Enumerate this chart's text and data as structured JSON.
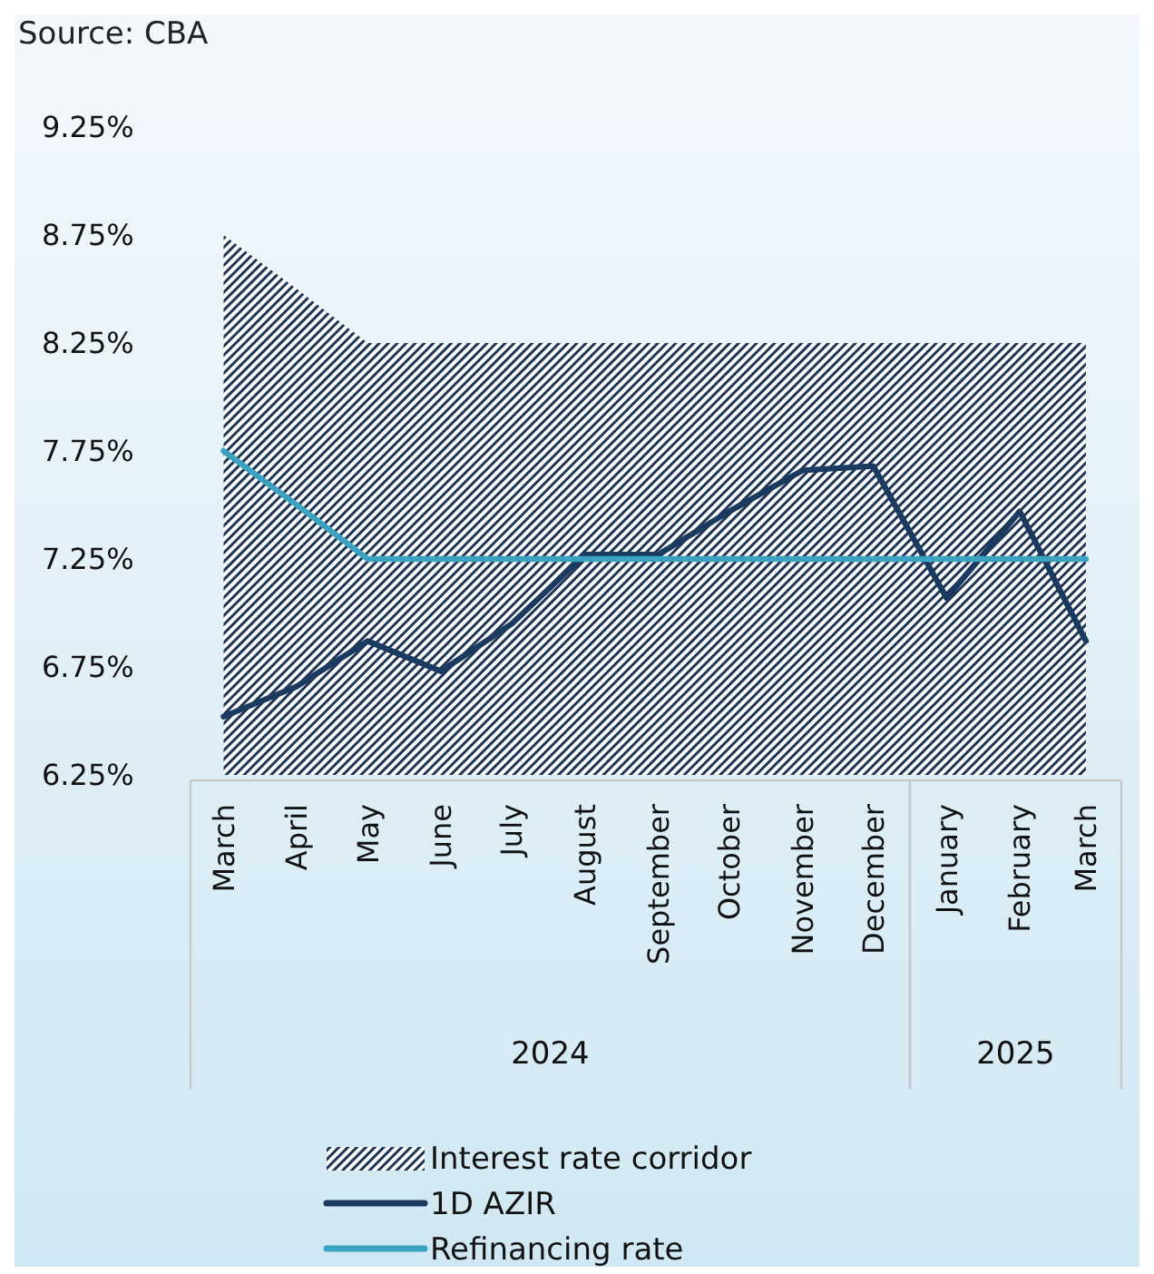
{
  "chart_data": {
    "type": "line",
    "annotations": [
      "Source: CBA",
      "2024",
      "2025"
    ],
    "x": [
      "2024-03",
      "2024-04",
      "2024-05",
      "2024-06",
      "2024-07",
      "2024-08",
      "2024-09",
      "2024-10",
      "2024-11",
      "2024-12",
      "2025-01",
      "2025-02",
      "2025-03"
    ],
    "xlim": [
      "2024-02-16",
      "2025-03-16"
    ],
    "xticks": [
      {
        "value": "2024-03",
        "label": "March"
      },
      {
        "value": "2024-04",
        "label": "April"
      },
      {
        "value": "2024-05",
        "label": "May"
      },
      {
        "value": "2024-06",
        "label": "June"
      },
      {
        "value": "2024-07",
        "label": "July"
      },
      {
        "value": "2024-08",
        "label": "August"
      },
      {
        "value": "2024-09",
        "label": "September"
      },
      {
        "value": "2024-10",
        "label": "October"
      },
      {
        "value": "2024-11",
        "label": "November"
      },
      {
        "value": "2024-12",
        "label": "December"
      },
      {
        "value": "2025-01",
        "label": "January"
      },
      {
        "value": "2025-02",
        "label": "February"
      },
      {
        "value": "2025-03",
        "label": "March"
      }
    ],
    "ylim": [
      6.25,
      9.25
    ],
    "yticks": [
      {
        "value": 6.25,
        "label": "6.25%"
      },
      {
        "value": 6.75,
        "label": "6.75%"
      },
      {
        "value": 7.25,
        "label": "7.25%"
      },
      {
        "value": 7.75,
        "label": "7.75%"
      },
      {
        "value": 8.25,
        "label": "8.25%"
      },
      {
        "value": 8.75,
        "label": "8.75%"
      },
      {
        "value": 9.25,
        "label": "9.25%"
      }
    ],
    "grid": false,
    "legend": "bottom",
    "marker": "none",
    "line_style": "solid",
    "series": [
      {
        "name": "Interest rate corridor",
        "type": "area",
        "color": "#1f3558",
        "values": [
          8.75,
          8.5,
          8.25,
          8.25,
          8.25,
          8.25,
          8.25,
          8.25,
          8.25,
          8.25,
          8.25,
          8.25,
          8.25
        ]
      },
      {
        "name": "1D AZIR",
        "type": "line",
        "color": "#1b3a5f",
        "values": [
          6.52,
          6.66,
          6.87,
          6.73,
          6.95,
          7.27,
          7.27,
          7.47,
          7.66,
          7.68,
          7.07,
          7.47,
          6.87
        ]
      },
      {
        "name": "Refinancing rate",
        "type": "line",
        "color": "#3ba3c0",
        "values": [
          7.75,
          7.5,
          7.25,
          7.25,
          7.25,
          7.25,
          7.25,
          7.25,
          7.25,
          7.25,
          7.25,
          7.25,
          7.25
        ]
      }
    ]
  }
}
